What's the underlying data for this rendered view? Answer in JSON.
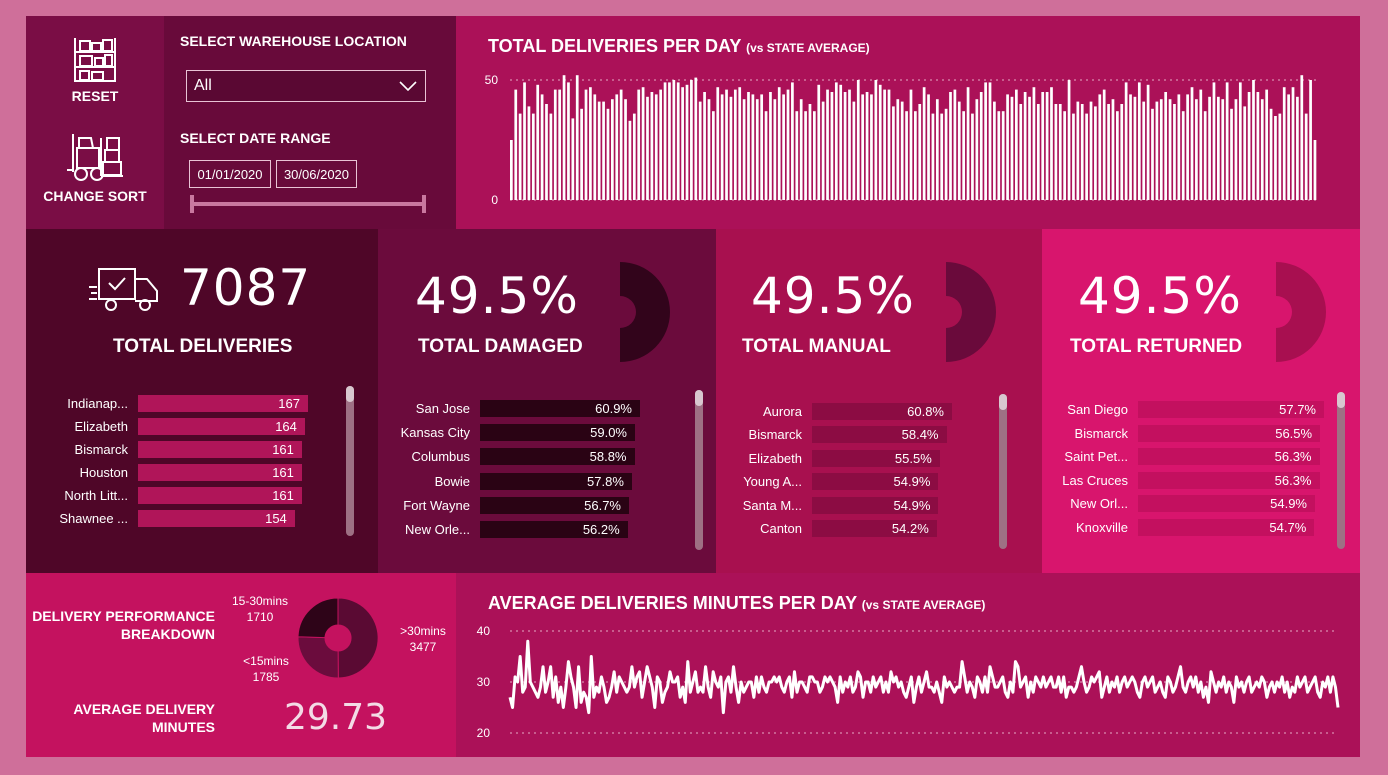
{
  "nav": {
    "reset_label": "RESET",
    "sort_label": "CHANGE SORT"
  },
  "filters": {
    "warehouse_title": "SELECT WAREHOUSE LOCATION",
    "warehouse_value": "All",
    "date_title": "SELECT DATE RANGE",
    "date_start": "01/01/2020",
    "date_end": "30/06/2020"
  },
  "deliveries_chart": {
    "title": "TOTAL DELIVERIES PER DAY",
    "subtitle": "(vs STATE AVERAGE)",
    "chart_data": {
      "type": "bar",
      "ylim": [
        0,
        50
      ],
      "ticks": [
        "50",
        "0"
      ],
      "values": [
        25,
        46,
        36,
        49,
        39,
        36,
        48,
        44,
        40,
        36,
        46,
        46,
        52,
        49,
        34,
        52,
        38,
        46,
        47,
        44,
        41,
        41,
        38,
        42,
        44,
        46,
        42,
        33,
        36,
        46,
        47,
        43,
        45,
        44,
        46,
        49,
        49,
        50,
        49,
        47,
        48,
        50,
        51,
        41,
        45,
        42,
        37,
        47,
        44,
        46,
        43,
        46,
        47,
        42,
        45,
        44,
        42,
        44,
        37,
        45,
        42,
        47,
        44,
        46,
        49,
        37,
        42,
        37,
        40,
        37,
        48,
        41,
        46,
        45,
        49,
        48,
        45,
        46,
        41,
        50,
        44,
        45,
        44,
        50,
        48,
        46,
        46,
        39,
        42,
        41,
        37,
        46,
        37,
        40,
        47,
        44,
        36,
        42,
        36,
        38,
        45,
        46,
        41,
        37,
        47,
        36,
        42,
        45,
        49,
        49,
        41,
        37,
        37,
        44,
        43,
        46,
        40,
        45,
        43,
        47,
        40,
        45,
        45,
        47,
        40,
        40,
        37,
        50,
        36,
        41,
        40,
        36,
        41,
        39,
        44,
        46,
        40,
        42,
        37,
        40,
        49,
        44,
        43,
        49,
        41,
        48,
        38,
        41,
        42,
        45,
        42,
        40,
        44,
        37,
        44,
        47,
        42,
        46,
        37,
        43,
        49,
        43,
        42,
        49,
        38,
        42,
        49,
        39,
        45,
        50,
        45,
        42,
        46,
        38,
        35,
        36,
        47,
        44,
        47,
        43,
        52,
        36,
        50,
        25
      ]
    }
  },
  "kpis": {
    "deliveries": {
      "value": "7087",
      "label": "TOTAL DELIVERIES",
      "rows": [
        {
          "city": "Indianap...",
          "value": "167",
          "num": 167
        },
        {
          "city": "Elizabeth",
          "value": "164",
          "num": 164
        },
        {
          "city": "Bismarck",
          "value": "161",
          "num": 161
        },
        {
          "city": "Houston",
          "value": "161",
          "num": 161
        },
        {
          "city": "North Litt...",
          "value": "161",
          "num": 161
        },
        {
          "city": "Shawnee ...",
          "value": "154",
          "num": 154
        }
      ]
    },
    "damaged": {
      "value": "49.5%",
      "label": "TOTAL DAMAGED",
      "rows": [
        {
          "city": "San Jose",
          "value": "60.9%",
          "num": 60.9
        },
        {
          "city": "Kansas City",
          "value": "59.0%",
          "num": 59.0
        },
        {
          "city": "Columbus",
          "value": "58.8%",
          "num": 58.8
        },
        {
          "city": "Bowie",
          "value": "57.8%",
          "num": 57.8
        },
        {
          "city": "Fort Wayne",
          "value": "56.7%",
          "num": 56.7
        },
        {
          "city": "New Orle...",
          "value": "56.2%",
          "num": 56.2
        }
      ]
    },
    "manual": {
      "value": "49.5%",
      "label": "TOTAL MANUAL",
      "rows": [
        {
          "city": "Aurora",
          "value": "60.8%",
          "num": 60.8
        },
        {
          "city": "Bismarck",
          "value": "58.4%",
          "num": 58.4
        },
        {
          "city": "Elizabeth",
          "value": "55.5%",
          "num": 55.5
        },
        {
          "city": "Young A...",
          "value": "54.9%",
          "num": 54.9
        },
        {
          "city": "Santa M...",
          "value": "54.9%",
          "num": 54.9
        },
        {
          "city": "Canton",
          "value": "54.2%",
          "num": 54.2
        }
      ]
    },
    "returned": {
      "value": "49.5%",
      "label": "TOTAL RETURNED",
      "rows": [
        {
          "city": "San Diego",
          "value": "57.7%",
          "num": 57.7
        },
        {
          "city": "Bismarck",
          "value": "56.5%",
          "num": 56.5
        },
        {
          "city": "Saint Pet...",
          "value": "56.3%",
          "num": 56.3
        },
        {
          "city": "Las Cruces",
          "value": "56.3%",
          "num": 56.3
        },
        {
          "city": "New Orl...",
          "value": "54.9%",
          "num": 54.9
        },
        {
          "city": "Knoxville",
          "value": "54.7%",
          "num": 54.7
        }
      ]
    }
  },
  "performance": {
    "title_line1": "DELIVERY PERFORMANCE",
    "title_line2": "BREAKDOWN",
    "avg_label_line1": "AVERAGE DELIVERY",
    "avg_label_line2": "MINUTES",
    "avg_value": "29.73",
    "chart_data": {
      "type": "pie",
      "slices": [
        {
          "label": ">30mins",
          "value": 3477,
          "value_text": "3477",
          "color": "#5a0a33"
        },
        {
          "label": "<15mins",
          "value": 1785,
          "value_text": "1785",
          "color": "#6b0c3d"
        },
        {
          "label": "15-30mins",
          "value": 1710,
          "value_text": "1710",
          "color": "#2e0418"
        }
      ]
    }
  },
  "minutes_chart": {
    "title": "AVERAGE DELIVERIES MINUTES PER DAY",
    "subtitle": "(vs STATE AVERAGE)",
    "chart_data": {
      "type": "line",
      "ylim": [
        20,
        40
      ],
      "ticks": [
        "40",
        "30",
        "20"
      ],
      "values": [
        27,
        25,
        31,
        30,
        35,
        28,
        29,
        38,
        30,
        29,
        28,
        27,
        29,
        33,
        28,
        30,
        33,
        27,
        31,
        26,
        29,
        25,
        29,
        34,
        31,
        29,
        25,
        33,
        26,
        28,
        27,
        24,
        35,
        27,
        29,
        28,
        31,
        29,
        26,
        27,
        29,
        32,
        28,
        31,
        30,
        29,
        28,
        29,
        33,
        29,
        31,
        32,
        27,
        30,
        33,
        31,
        29,
        25,
        31,
        30,
        26,
        28,
        29,
        32,
        30,
        30,
        31,
        27,
        29,
        26,
        34,
        28,
        30,
        32,
        28,
        29,
        28,
        33,
        29,
        27,
        32,
        30,
        29,
        31,
        24,
        30,
        31,
        28,
        33,
        29,
        26,
        30,
        28,
        29,
        30,
        30,
        27,
        31,
        28,
        31,
        29,
        28,
        30,
        30,
        31,
        30,
        31,
        29,
        28,
        30,
        31,
        27,
        32,
        28,
        30,
        30,
        29,
        28,
        31,
        31,
        30,
        30,
        28,
        29,
        31,
        30,
        31,
        30,
        29,
        26,
        31,
        28,
        30,
        29,
        31,
        28,
        29,
        32,
        31,
        27,
        30,
        30,
        28,
        31,
        29,
        30,
        31,
        28,
        30,
        28,
        32,
        30,
        31,
        29,
        30,
        28,
        27,
        29,
        31,
        26,
        29,
        31,
        28,
        30,
        32,
        29,
        29,
        28,
        30,
        28,
        26,
        31,
        29,
        30,
        29,
        28,
        29,
        29,
        34,
        31,
        28,
        30,
        29,
        27,
        31,
        30,
        28,
        31,
        28,
        33,
        31,
        29,
        29,
        30,
        31,
        28,
        27,
        30,
        28,
        34,
        33,
        29,
        30,
        31,
        27,
        30,
        28,
        31,
        30,
        29,
        31,
        29,
        30,
        31,
        29,
        29,
        31,
        28,
        31,
        27,
        29,
        29,
        28,
        29,
        31,
        33,
        30,
        28,
        29,
        31,
        30,
        31,
        32,
        27,
        29,
        31,
        28,
        30,
        29,
        31,
        28,
        30,
        31,
        29,
        30,
        31,
        30,
        28,
        27,
        30,
        31,
        29,
        30,
        31,
        28,
        29,
        30,
        28,
        27,
        31,
        30,
        28,
        29,
        31,
        33,
        29,
        28,
        30,
        31,
        29,
        31,
        28,
        30,
        27,
        29,
        26,
        32,
        30,
        28,
        30,
        29,
        31,
        28,
        30,
        29,
        26,
        31,
        29,
        30,
        28,
        30,
        31,
        28,
        29,
        30,
        29,
        31,
        30,
        27,
        29,
        30,
        28,
        30,
        29,
        31,
        28,
        30,
        27,
        29,
        28,
        31,
        29,
        30,
        31,
        28,
        29,
        30,
        31,
        28,
        27,
        30,
        29,
        31,
        28,
        31,
        29,
        25
      ]
    }
  }
}
